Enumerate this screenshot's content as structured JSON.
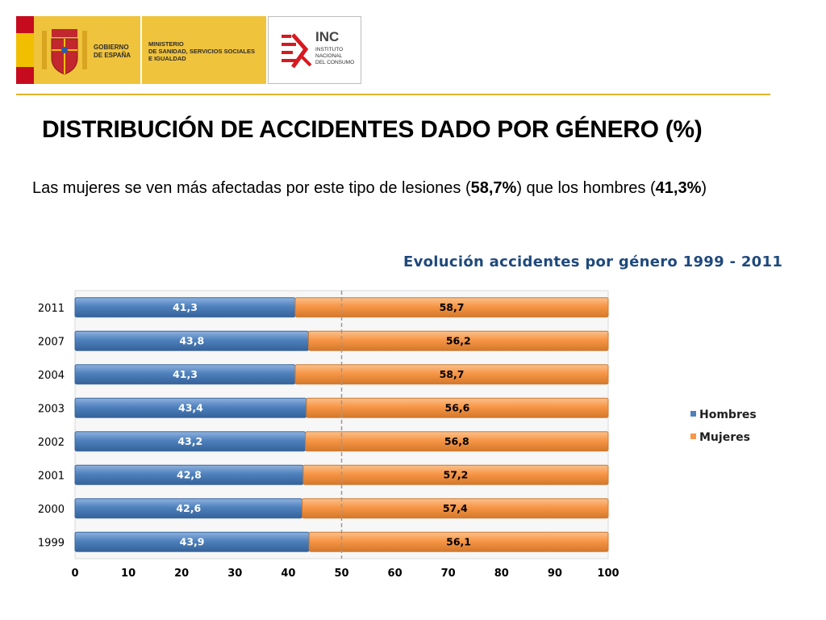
{
  "header": {
    "gobierno_label": "GOBIERNO\nDE ESPAÑA",
    "ministerio_label": "MINISTERIO\nDE SANIDAD, SERVICIOS SOCIALES\nE IGUALDAD",
    "inc_abbr": "INC",
    "inc_label": "INSTITUTO\nNACIONAL\nDEL CONSUMO"
  },
  "page_title": "DISTRIBUCIÓN DE ACCIDENTES DADO POR GÉNERO (%)",
  "intro": {
    "part1": "Las mujeres se ven más afectadas por este tipo de lesiones (",
    "women_pct": "58,7%",
    "part2": ") que los hombres (",
    "men_pct": "41,3%",
    "part3": ")"
  },
  "colors": {
    "hombres": "#4f81bd",
    "mujeres": "#f79646",
    "title_blue": "#1f497d",
    "gold": "#e0b22e"
  },
  "chart_data": {
    "type": "bar",
    "orientation": "horizontal",
    "stacked": true,
    "title": "Evolución accidentes por género 1999 - 2011",
    "categories": [
      "2011",
      "2007",
      "2004",
      "2003",
      "2002",
      "2001",
      "2000",
      "1999"
    ],
    "series": [
      {
        "name": "Hombres",
        "values": [
          41.3,
          43.8,
          41.3,
          43.4,
          43.2,
          42.8,
          42.6,
          43.9
        ],
        "labels": [
          "41,3",
          "43,8",
          "41,3",
          "43,4",
          "43,2",
          "42,8",
          "42,6",
          "43,9"
        ]
      },
      {
        "name": "Mujeres",
        "values": [
          58.7,
          56.2,
          58.7,
          56.6,
          56.8,
          57.2,
          57.4,
          56.1
        ],
        "labels": [
          "58,7",
          "56,2",
          "58,7",
          "56,6",
          "56,8",
          "57,2",
          "57,4",
          "56,1"
        ]
      }
    ],
    "x_ticks": [
      "0",
      "10",
      "20",
      "30",
      "40",
      "50",
      "60",
      "70",
      "80",
      "90",
      "100"
    ],
    "xlim": [
      0,
      100
    ],
    "reference_line": 50,
    "legend_position": "right",
    "grid": false
  }
}
